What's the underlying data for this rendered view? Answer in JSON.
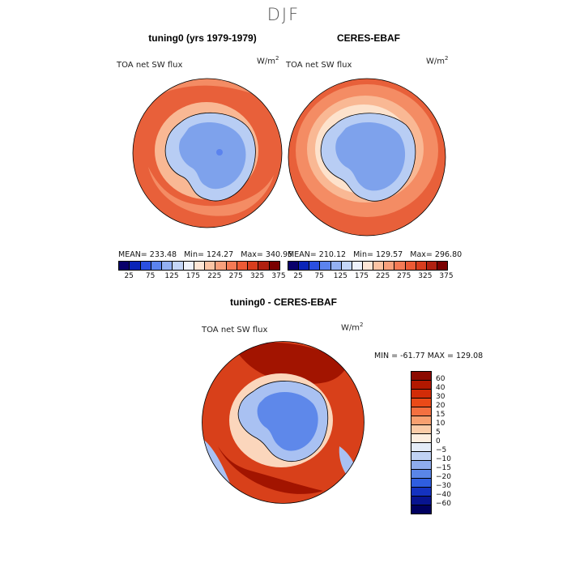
{
  "figure": {
    "season": "DJF"
  },
  "panels": [
    {
      "title": "tuning0 (yrs 1979-1979)",
      "variable": "TOA net SW flux",
      "unit": "W/m",
      "unit_exp": "2",
      "stats": {
        "mean_label": "MEAN=",
        "mean": "233.48",
        "min_label": "Min=",
        "min": "124.27",
        "max_label": "Max=",
        "max": "340.95"
      }
    },
    {
      "title": "CERES-EBAF",
      "variable": "TOA net SW flux",
      "unit": "W/m",
      "unit_exp": "2",
      "stats": {
        "mean_label": "MEAN=",
        "mean": "210.12",
        "min_label": "Min=",
        "min": "129.57",
        "max_label": "Max=",
        "max": "296.80"
      }
    },
    {
      "title": "tuning0 - CERES-EBAF",
      "variable": "TOA net SW flux",
      "unit": "W/m",
      "unit_exp": "2",
      "minmax_text": "MIN = -61.77  MAX = 129.08"
    }
  ],
  "colorbar_abs": {
    "ticks": [
      "25",
      "75",
      "125",
      "175",
      "225",
      "275",
      "325",
      "375"
    ],
    "colors": [
      "#08006b",
      "#0a24b8",
      "#2a4fe0",
      "#5b83ee",
      "#93b0f2",
      "#c4d6f7",
      "#eef2fb",
      "#fde6d6",
      "#fbc4a4",
      "#f8a07c",
      "#f47a55",
      "#ec5a35",
      "#d83d1e",
      "#b02010",
      "#7a0000"
    ]
  },
  "colorbar_diff": {
    "labels": [
      "60",
      "40",
      "30",
      "20",
      "15",
      "10",
      "5",
      "0",
      "−5",
      "−10",
      "−15",
      "−20",
      "−30",
      "−40",
      "−60"
    ],
    "colors": [
      "#8c0a00",
      "#b21800",
      "#d22c08",
      "#ea4a18",
      "#f47040",
      "#f8a070",
      "#fbcca8",
      "#fdeee0",
      "#e4ecf8",
      "#c0d2f4",
      "#8eacee",
      "#5a86e8",
      "#2f5ee0",
      "#1432c0",
      "#081490",
      "#000060"
    ]
  },
  "map_colors": {
    "ocean_high": "#e8603a",
    "ocean_mid": "#f48c64",
    "ocean_low": "#f9b894",
    "ocean_pale": "#fde2cc",
    "ice_blue": "#7ea2ec",
    "ice_light": "#b8cdf4",
    "ice_mid": "#5b83ee",
    "diff_red": "#d8401a",
    "diff_dark": "#a21400",
    "diff_pale": "#fbd6bc",
    "diff_blue": "#5e88ea",
    "diff_lightblue": "#a9c1f2"
  }
}
